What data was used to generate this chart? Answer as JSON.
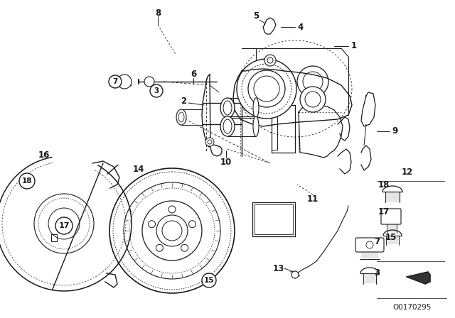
{
  "bg_color": "#ffffff",
  "line_color": "#1a1a1a",
  "part_number": "O0170295",
  "fig_width": 6.4,
  "fig_height": 4.48,
  "dpi": 100,
  "border_color": "#dddddd"
}
